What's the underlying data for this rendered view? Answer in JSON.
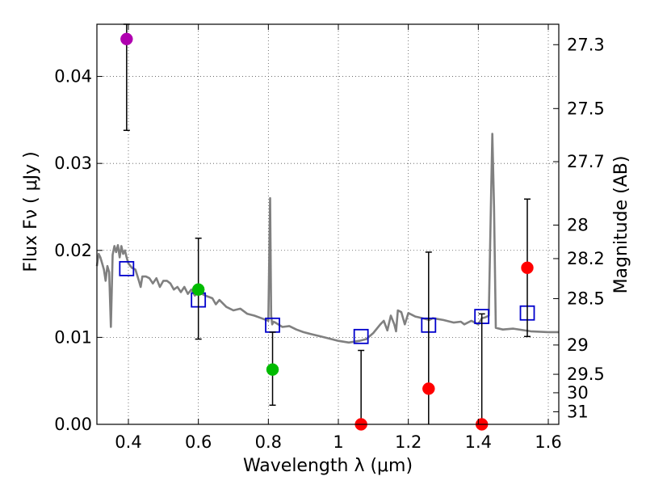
{
  "chart_data": {
    "type": "scatter",
    "title": "",
    "xlabel": "Wavelength  λ (μm)",
    "ylabel": "Flux  Fν  ( μJy )",
    "ylabel_right": "Magnitude (AB)",
    "xlim": [
      0.31,
      1.63
    ],
    "ylim": [
      0,
      0.046
    ],
    "grid": true,
    "x_ticks": [
      {
        "value": 0.4,
        "label": "0.4"
      },
      {
        "value": 0.6,
        "label": "0.6"
      },
      {
        "value": 0.8,
        "label": "0.8"
      },
      {
        "value": 1.0,
        "label": "1"
      },
      {
        "value": 1.2,
        "label": "1.2"
      },
      {
        "value": 1.4,
        "label": "1.4"
      },
      {
        "value": 1.6,
        "label": "1.6"
      }
    ],
    "y_ticks": [
      {
        "value": 0.0,
        "label": "0.00"
      },
      {
        "value": 0.01,
        "label": "0.01"
      },
      {
        "value": 0.02,
        "label": "0.02"
      },
      {
        "value": 0.03,
        "label": "0.03"
      },
      {
        "value": 0.04,
        "label": "0.04"
      }
    ],
    "mag_ticks": [
      {
        "value": 27.3,
        "label": "27.3"
      },
      {
        "value": 27.5,
        "label": "27.5"
      },
      {
        "value": 27.7,
        "label": "27.7"
      },
      {
        "value": 28.0,
        "label": "28"
      },
      {
        "value": 28.2,
        "label": "28.2"
      },
      {
        "value": 28.5,
        "label": "28.5"
      },
      {
        "value": 29.0,
        "label": "29"
      },
      {
        "value": 29.5,
        "label": "29.5"
      },
      {
        "value": 30.0,
        "label": "30"
      },
      {
        "value": 31.0,
        "label": "31"
      }
    ],
    "colors": {
      "sed_line": "#808080",
      "model_box": "#0000cc",
      "errorbar": "#000000",
      "grid": "#555555"
    },
    "sed_model": {
      "x": [
        0.31,
        0.315,
        0.32,
        0.325,
        0.33,
        0.335,
        0.34,
        0.345,
        0.35,
        0.355,
        0.36,
        0.365,
        0.37,
        0.375,
        0.38,
        0.385,
        0.39,
        0.395,
        0.4,
        0.41,
        0.42,
        0.43,
        0.435,
        0.44,
        0.45,
        0.46,
        0.47,
        0.48,
        0.49,
        0.5,
        0.51,
        0.52,
        0.53,
        0.54,
        0.55,
        0.56,
        0.57,
        0.58,
        0.59,
        0.6,
        0.62,
        0.64,
        0.65,
        0.66,
        0.68,
        0.7,
        0.72,
        0.74,
        0.76,
        0.78,
        0.8,
        0.805,
        0.808,
        0.811,
        0.815,
        0.82,
        0.84,
        0.86,
        0.88,
        0.9,
        0.92,
        0.95,
        0.98,
        1.0,
        1.03,
        1.06,
        1.08,
        1.1,
        1.12,
        1.13,
        1.14,
        1.15,
        1.16,
        1.165,
        1.17,
        1.18,
        1.19,
        1.2,
        1.21,
        1.22,
        1.23,
        1.24,
        1.25,
        1.26,
        1.27,
        1.3,
        1.33,
        1.35,
        1.36,
        1.38,
        1.4,
        1.41,
        1.42,
        1.43,
        1.436,
        1.44,
        1.445,
        1.45,
        1.47,
        1.5,
        1.55,
        1.6,
        1.63
      ],
      "y": [
        0.0182,
        0.0196,
        0.0192,
        0.0185,
        0.0178,
        0.0165,
        0.0182,
        0.0175,
        0.0112,
        0.0195,
        0.0205,
        0.0198,
        0.0206,
        0.0192,
        0.0205,
        0.0196,
        0.02,
        0.0192,
        0.0185,
        0.018,
        0.0178,
        0.0165,
        0.0158,
        0.017,
        0.017,
        0.0168,
        0.0162,
        0.0168,
        0.0158,
        0.0165,
        0.0165,
        0.0162,
        0.0155,
        0.0158,
        0.0152,
        0.0158,
        0.015,
        0.0155,
        0.0148,
        0.0152,
        0.0148,
        0.0145,
        0.0138,
        0.0143,
        0.0135,
        0.0131,
        0.0133,
        0.0127,
        0.0125,
        0.0122,
        0.0119,
        0.026,
        0.0125,
        0.0115,
        0.0118,
        0.0117,
        0.0112,
        0.0113,
        0.0109,
        0.0106,
        0.0104,
        0.0101,
        0.0098,
        0.0096,
        0.0094,
        0.0096,
        0.0098,
        0.0105,
        0.0115,
        0.0119,
        0.0108,
        0.0125,
        0.0115,
        0.0107,
        0.0131,
        0.0129,
        0.0115,
        0.0128,
        0.0126,
        0.0124,
        0.0123,
        0.0122,
        0.0121,
        0.012,
        0.0122,
        0.012,
        0.0117,
        0.0118,
        0.0115,
        0.0119,
        0.0115,
        0.0122,
        0.0123,
        0.0125,
        0.025,
        0.0334,
        0.025,
        0.0111,
        0.0109,
        0.011,
        0.0107,
        0.0106,
        0.0106
      ]
    },
    "model_boxes": {
      "x": [
        0.395,
        0.6,
        0.812,
        1.065,
        1.258,
        1.41,
        1.54
      ],
      "y": [
        0.0179,
        0.0143,
        0.0114,
        0.0101,
        0.0114,
        0.0124,
        0.0128
      ]
    },
    "measurements": [
      {
        "x": 0.395,
        "y": 0.0443,
        "err_low": 0.0338,
        "err_high": 0.046,
        "color": "#b000b0"
      },
      {
        "x": 0.6,
        "y": 0.0155,
        "err_low": 0.0098,
        "err_high": 0.0214,
        "color": "#00bb00"
      },
      {
        "x": 0.812,
        "y": 0.0063,
        "err_low": 0.0022,
        "err_high": 0.0106,
        "color": "#00bb00"
      },
      {
        "x": 1.065,
        "y": 0.0,
        "err_low": 0.0,
        "err_high": 0.0085,
        "color": "#ff0000"
      },
      {
        "x": 1.258,
        "y": 0.0041,
        "err_low": 0.0,
        "err_high": 0.0198,
        "color": "#ff0000"
      },
      {
        "x": 1.41,
        "y": 0.0,
        "err_low": 0.0,
        "err_high": 0.0127,
        "color": "#ff0000"
      },
      {
        "x": 1.54,
        "y": 0.018,
        "err_low": 0.0101,
        "err_high": 0.0259,
        "color": "#ff0000"
      }
    ]
  }
}
